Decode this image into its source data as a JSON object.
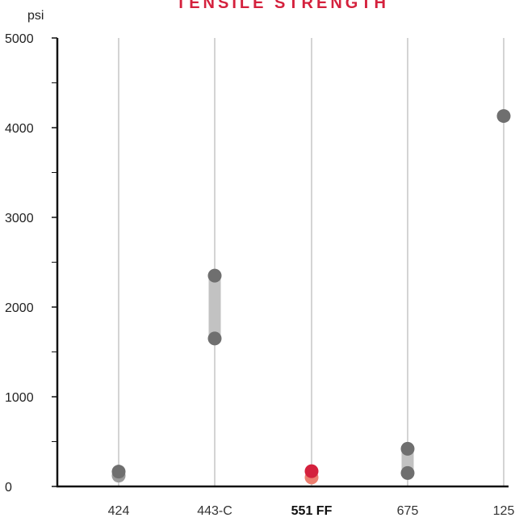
{
  "chart_data": {
    "type": "scatter",
    "title": "TENSILE STRENGTH",
    "ylabel": "psi",
    "ylim": [
      0,
      5000
    ],
    "yticks": [
      0,
      1000,
      2000,
      3000,
      4000,
      5000
    ],
    "categories": [
      "424",
      "443-C",
      "551 FF",
      "675",
      "125"
    ],
    "highlight_category": "551 FF",
    "grid": "vertical lines at categories",
    "ranges": [
      {
        "category": "424",
        "low": 120,
        "high": 165
      },
      {
        "category": "443-C",
        "low": 1650,
        "high": 2350
      },
      {
        "category": "551 FF",
        "low": 100,
        "high": 170
      },
      {
        "category": "675",
        "low": 150,
        "high": 420
      },
      {
        "category": "125",
        "low": 4130,
        "high": 4130
      }
    ],
    "colors": {
      "title": "#d4213d",
      "point": "#6f6f6f",
      "point_light": "#9a9a9a",
      "range_bar": "#c2c2c2",
      "highlight_high": "#d4213d",
      "highlight_low": "#ec7e6f",
      "grid": "#a8a8a8",
      "axis": "#111111"
    }
  }
}
